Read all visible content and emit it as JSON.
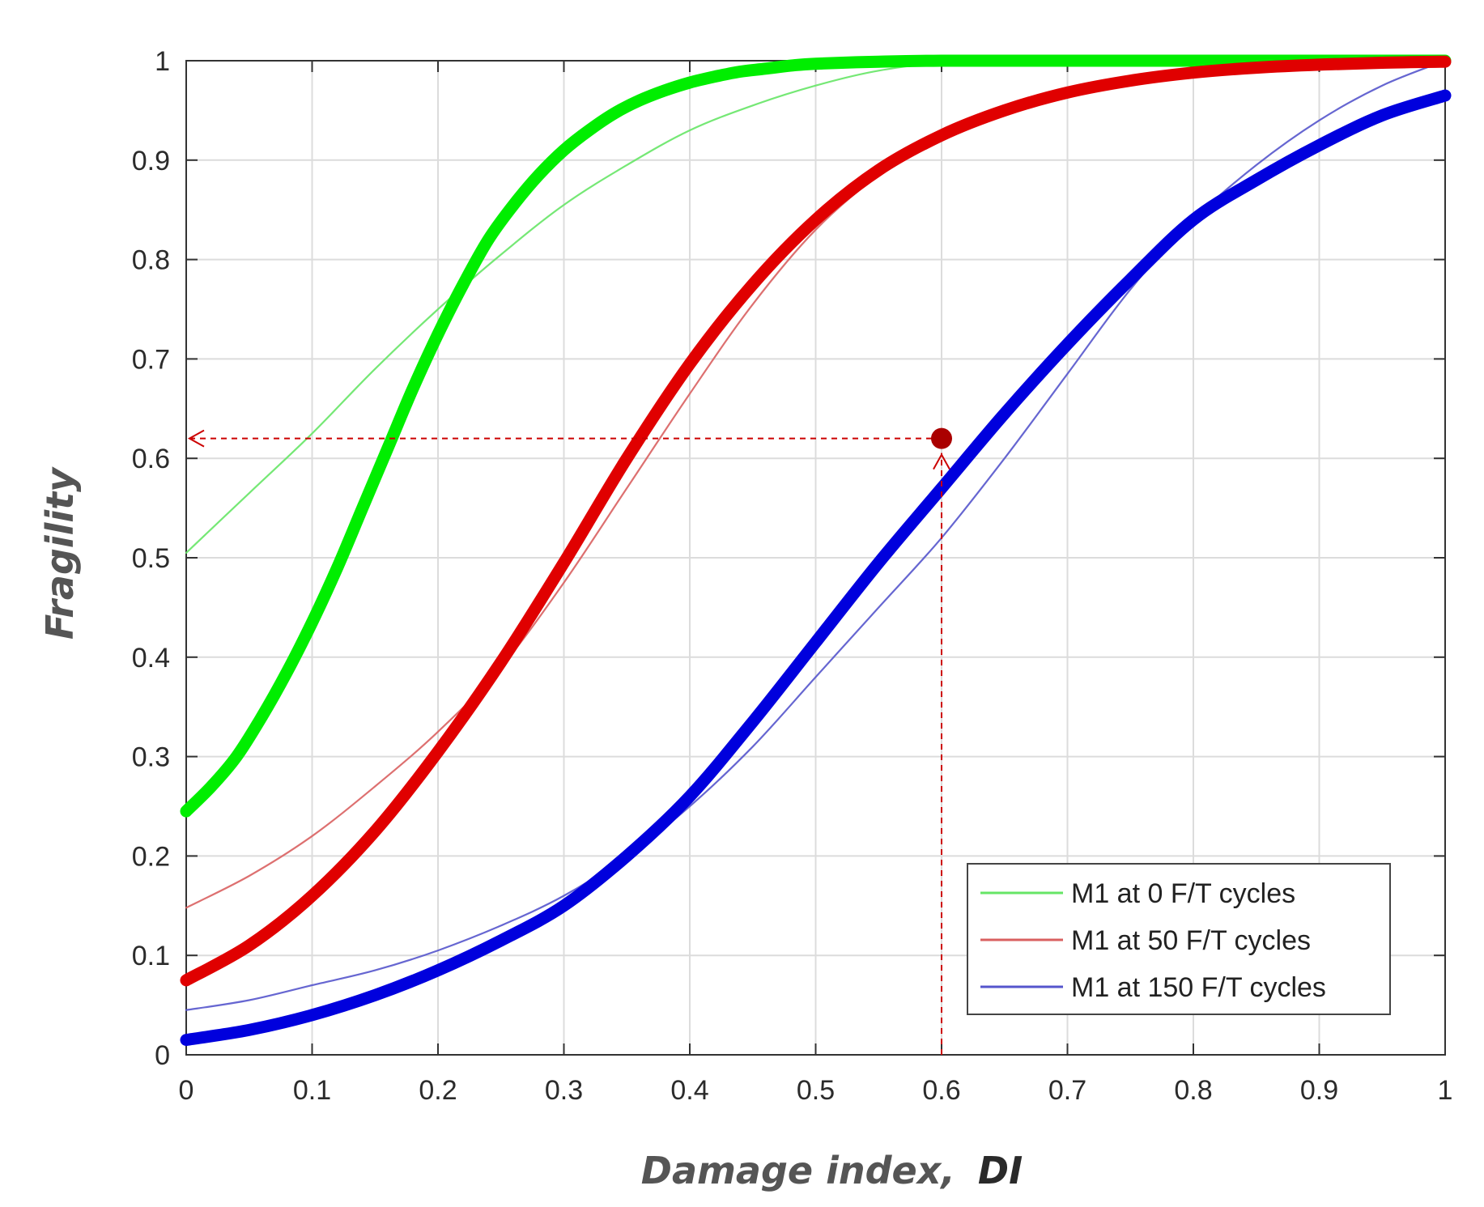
{
  "chart_data": {
    "type": "line",
    "title": "",
    "xlabel": "Damage index,",
    "xlabel_emph": "DI",
    "ylabel": "Fragility",
    "xlim": [
      0,
      1
    ],
    "ylim": [
      0,
      1
    ],
    "grid": true,
    "xticks": [
      0,
      0.1,
      0.2,
      0.3,
      0.4,
      0.5,
      0.6,
      0.7,
      0.8,
      0.9,
      1
    ],
    "xtick_labels": [
      "0",
      "0.1",
      "0.2",
      "0.3",
      "0.4",
      "0.5",
      "0.6",
      "0.7",
      "0.8",
      "0.9",
      "1"
    ],
    "yticks": [
      0,
      0.1,
      0.2,
      0.3,
      0.4,
      0.5,
      0.6,
      0.7,
      0.8,
      0.9,
      1
    ],
    "ytick_labels": [
      "0",
      "0.1",
      "0.2",
      "0.3",
      "0.4",
      "0.5",
      "0.6",
      "0.7",
      "0.8",
      "0.9",
      "1"
    ],
    "legend_position": "bottom-right",
    "series": [
      {
        "name": "M1 at 0 F/T cycles",
        "color": "#00ee00",
        "style": "thick fitted",
        "in_legend": false,
        "x": [
          0,
          0.02,
          0.04,
          0.06,
          0.08,
          0.1,
          0.12,
          0.14,
          0.16,
          0.18,
          0.2,
          0.22,
          0.24,
          0.26,
          0.28,
          0.3,
          0.32,
          0.34,
          0.36,
          0.38,
          0.4,
          0.42,
          0.44,
          0.46,
          0.48,
          0.5,
          0.55,
          0.6,
          0.7,
          0.8,
          0.9,
          1.0
        ],
        "values": [
          0.245,
          0.27,
          0.3,
          0.34,
          0.385,
          0.435,
          0.49,
          0.55,
          0.61,
          0.67,
          0.725,
          0.775,
          0.82,
          0.855,
          0.885,
          0.91,
          0.93,
          0.947,
          0.96,
          0.97,
          0.978,
          0.984,
          0.989,
          0.992,
          0.995,
          0.997,
          0.999,
          1.0,
          1.0,
          1.0,
          1.0,
          1.0
        ]
      },
      {
        "name": "M1 at 0 F/T cycles",
        "color": "#66e566",
        "style": "thin empirical",
        "in_legend": true,
        "x": [
          0,
          0.05,
          0.1,
          0.15,
          0.2,
          0.25,
          0.3,
          0.35,
          0.4,
          0.45,
          0.5,
          0.55,
          0.6,
          0.7,
          0.8,
          0.9,
          1.0
        ],
        "values": [
          0.505,
          0.565,
          0.625,
          0.69,
          0.75,
          0.805,
          0.855,
          0.895,
          0.93,
          0.955,
          0.975,
          0.99,
          0.997,
          1.0,
          1.0,
          1.0,
          1.0
        ]
      },
      {
        "name": "M1 at 50 F/T cycles",
        "color": "#e00000",
        "style": "thick fitted",
        "in_legend": false,
        "x": [
          0,
          0.05,
          0.1,
          0.15,
          0.2,
          0.25,
          0.3,
          0.35,
          0.4,
          0.45,
          0.5,
          0.55,
          0.6,
          0.65,
          0.7,
          0.75,
          0.8,
          0.85,
          0.9,
          0.95,
          1.0
        ],
        "values": [
          0.075,
          0.11,
          0.16,
          0.225,
          0.305,
          0.395,
          0.495,
          0.6,
          0.695,
          0.775,
          0.84,
          0.89,
          0.925,
          0.95,
          0.968,
          0.98,
          0.988,
          0.993,
          0.996,
          0.998,
          0.999
        ]
      },
      {
        "name": "M1 at 50 F/T cycles",
        "color": "#d96060",
        "style": "thin empirical",
        "in_legend": true,
        "x": [
          0,
          0.05,
          0.1,
          0.15,
          0.2,
          0.25,
          0.3,
          0.35,
          0.4,
          0.45,
          0.5,
          0.55,
          0.6,
          0.65,
          0.7,
          0.75,
          0.8,
          0.85,
          0.9,
          0.95,
          1.0
        ],
        "values": [
          0.148,
          0.18,
          0.22,
          0.27,
          0.325,
          0.39,
          0.475,
          0.57,
          0.665,
          0.755,
          0.83,
          0.885,
          0.925,
          0.952,
          0.97,
          0.982,
          0.99,
          0.995,
          0.998,
          0.999,
          1.0
        ]
      },
      {
        "name": "M1 at 150 F/T cycles",
        "color": "#0000dd",
        "style": "thick fitted",
        "in_legend": false,
        "x": [
          0,
          0.05,
          0.1,
          0.15,
          0.2,
          0.25,
          0.3,
          0.35,
          0.4,
          0.45,
          0.5,
          0.55,
          0.6,
          0.65,
          0.7,
          0.75,
          0.8,
          0.85,
          0.9,
          0.95,
          1.0
        ],
        "values": [
          0.015,
          0.025,
          0.04,
          0.06,
          0.085,
          0.115,
          0.15,
          0.2,
          0.26,
          0.335,
          0.415,
          0.495,
          0.57,
          0.645,
          0.715,
          0.78,
          0.84,
          0.88,
          0.915,
          0.945,
          0.965
        ]
      },
      {
        "name": "M1 at 150 F/T cycles",
        "color": "#5555cc",
        "style": "thin empirical",
        "in_legend": true,
        "x": [
          0,
          0.05,
          0.1,
          0.15,
          0.2,
          0.25,
          0.3,
          0.35,
          0.4,
          0.45,
          0.5,
          0.55,
          0.6,
          0.65,
          0.7,
          0.75,
          0.8,
          0.85,
          0.9,
          0.95,
          1.0
        ],
        "values": [
          0.045,
          0.055,
          0.07,
          0.085,
          0.105,
          0.13,
          0.16,
          0.2,
          0.25,
          0.31,
          0.38,
          0.45,
          0.52,
          0.6,
          0.685,
          0.77,
          0.84,
          0.895,
          0.94,
          0.975,
          1.0
        ]
      }
    ],
    "annotation": {
      "point": {
        "x": 0.6,
        "y": 0.62
      },
      "color": "#cc0000",
      "point_color": "#aa0000",
      "horizontal_arrow_to": 0,
      "vertical_arrow_from": 0
    },
    "legend": [
      {
        "label": "M1 at 0 F/T cycles",
        "color": "#66e566"
      },
      {
        "label": "M1 at 50 F/T cycles",
        "color": "#d96060"
      },
      {
        "label": "M1 at 150 F/T cycles",
        "color": "#5555cc"
      }
    ]
  }
}
